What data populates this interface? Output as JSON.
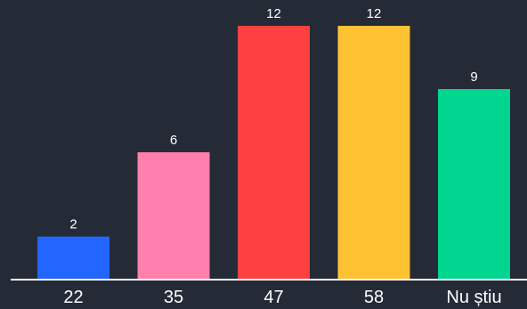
{
  "chart_data": {
    "type": "bar",
    "categories": [
      "22",
      "35",
      "47",
      "58",
      "Nu știu"
    ],
    "values": [
      2,
      6,
      12,
      12,
      9
    ],
    "colors": [
      "#2266ff",
      "#ff7fad",
      "#ff4040",
      "#ffc233",
      "#00d68f"
    ],
    "title": "",
    "xlabel": "",
    "ylabel": "",
    "ylim": [
      0,
      12
    ],
    "grid": false,
    "legend": "none"
  },
  "theme": {
    "background": "#252a37",
    "axis_color": "#ffffff",
    "text_color": "#ffffff"
  }
}
